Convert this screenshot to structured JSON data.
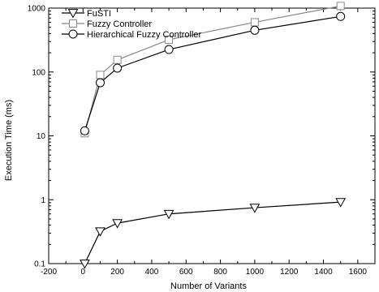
{
  "chart_data": {
    "type": "line",
    "xlabel": "Number of Variants",
    "ylabel": "Execution Time (ms)",
    "xlim": [
      -200,
      1700
    ],
    "ylim": [
      0.1,
      1000
    ],
    "y_scale": "log",
    "grid": false,
    "legend_position": "top-left",
    "x_ticks": [
      -200,
      0,
      200,
      400,
      600,
      800,
      1000,
      1200,
      1400,
      1600
    ],
    "y_ticks": [
      {
        "value": 0.1,
        "label": "0.1"
      },
      {
        "value": 1,
        "label": "1"
      },
      {
        "value": 10,
        "label": "10"
      },
      {
        "value": 100,
        "label": "100"
      },
      {
        "value": 1000,
        "label": "1000"
      }
    ],
    "series": [
      {
        "name": "FuSTI",
        "marker": "triangle-down",
        "color": "#000000",
        "points": [
          [
            10,
            0.1
          ],
          [
            100,
            0.32
          ],
          [
            200,
            0.43
          ],
          [
            500,
            0.6
          ],
          [
            1000,
            0.75
          ],
          [
            1500,
            0.92
          ]
        ]
      },
      {
        "name": "Fuzzy Controller",
        "marker": "square",
        "color": "#888888",
        "points": [
          [
            10,
            11
          ],
          [
            100,
            90
          ],
          [
            200,
            155
          ],
          [
            500,
            320
          ],
          [
            1000,
            600
          ],
          [
            1500,
            1080
          ]
        ]
      },
      {
        "name": "Hierarchical Fuzzy Controller",
        "marker": "circle",
        "color": "#000000",
        "points": [
          [
            10,
            12
          ],
          [
            100,
            68
          ],
          [
            200,
            115
          ],
          [
            500,
            225
          ],
          [
            1000,
            450
          ],
          [
            1500,
            740
          ]
        ]
      }
    ]
  }
}
